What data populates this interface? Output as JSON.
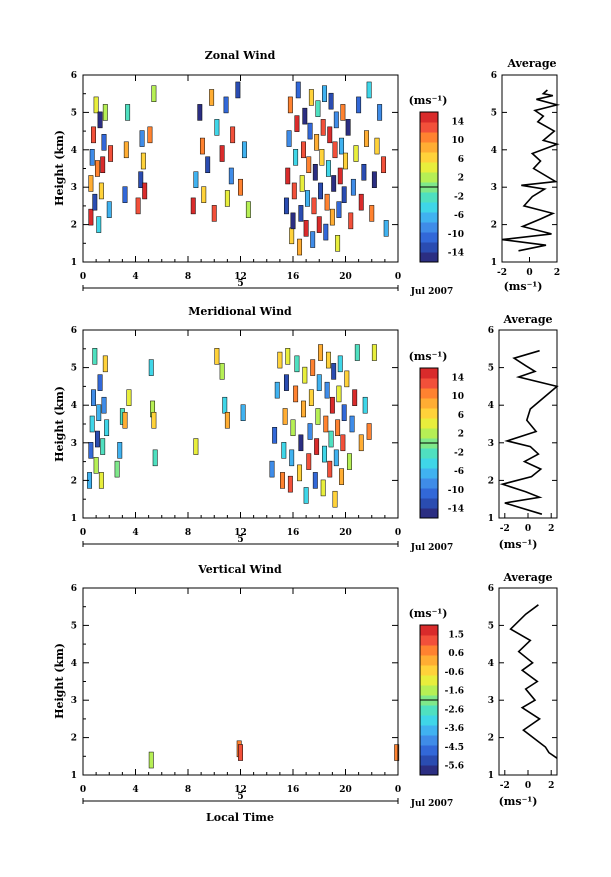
{
  "figure": {
    "shared_x_label": "Local Time",
    "date_label": "Jul 2007",
    "date_marker": "5",
    "x_ticks": [
      "0",
      "4",
      "8",
      "12",
      "16",
      "20",
      "0"
    ],
    "colormap": [
      "#2b2e82",
      "#2a4cb1",
      "#3268d8",
      "#3f8ce8",
      "#40b2f0",
      "#3fd6e8",
      "#4fe0c0",
      "#7fe88a",
      "#b6ef55",
      "#e8ee3c",
      "#ffd23a",
      "#ffad33",
      "#ff8230",
      "#f2503a",
      "#d92b2b"
    ]
  },
  "panels": [
    {
      "title": "Zonal Wind",
      "ylabel": "Height (km)",
      "y_ticks": [
        "1",
        "2",
        "3",
        "4",
        "5",
        "6"
      ],
      "colorbar_unit": "(ms⁻¹)",
      "colorbar_labels": [
        "14",
        "10",
        "6",
        "2",
        "-2",
        "-6",
        "-10",
        "-14"
      ],
      "avg_title": "Average",
      "avg_x_ticks": [
        "-2",
        "0",
        "2"
      ],
      "avg_xlabel": "(ms⁻¹)"
    },
    {
      "title": "Meridional Wind",
      "ylabel": "Height (km)",
      "y_ticks": [
        "1",
        "2",
        "3",
        "4",
        "5",
        "6"
      ],
      "colorbar_unit": "(ms⁻¹)",
      "colorbar_labels": [
        "14",
        "10",
        "6",
        "2",
        "-2",
        "-6",
        "-10",
        "-14"
      ],
      "avg_title": "Average",
      "avg_x_ticks": [
        "-2",
        "0",
        "2"
      ],
      "avg_xlabel": "(ms⁻¹)"
    },
    {
      "title": "Vertical Wind",
      "ylabel": "Height (km)",
      "y_ticks": [
        "1",
        "2",
        "3",
        "4",
        "5",
        "6"
      ],
      "colorbar_unit": "(ms⁻¹)",
      "colorbar_labels": [
        "1.5",
        "0.6",
        "-0.6",
        "-1.6",
        "-2.6",
        "-3.6",
        "-4.5",
        "-5.6"
      ],
      "avg_title": "Average",
      "avg_x_ticks": [
        "-2",
        "0",
        "2"
      ],
      "avg_xlabel": "(ms⁻¹)"
    }
  ],
  "chart_data": [
    {
      "type": "heatmap",
      "title": "Zonal Wind",
      "xlabel": "Local Time",
      "ylabel": "Height (km)",
      "xlim": [
        0,
        24
      ],
      "ylim": [
        1,
        6
      ],
      "colorbar_range": [
        -16,
        16
      ],
      "cells": [
        [
          0.6,
          2.2,
          14
        ],
        [
          0.6,
          3.1,
          8
        ],
        [
          0.7,
          3.8,
          -8
        ],
        [
          0.8,
          4.4,
          12
        ],
        [
          0.9,
          2.6,
          -12
        ],
        [
          1.0,
          5.2,
          4
        ],
        [
          1.1,
          3.5,
          10
        ],
        [
          1.2,
          2.0,
          -4
        ],
        [
          1.3,
          4.8,
          -14
        ],
        [
          1.4,
          2.9,
          6
        ],
        [
          1.5,
          3.6,
          14
        ],
        [
          1.6,
          4.2,
          -10
        ],
        [
          1.7,
          5.0,
          2
        ],
        [
          2.0,
          2.4,
          -6
        ],
        [
          2.1,
          3.9,
          12
        ],
        [
          3.2,
          2.8,
          -10
        ],
        [
          3.3,
          4.0,
          8
        ],
        [
          3.4,
          5.0,
          -2
        ],
        [
          4.2,
          2.5,
          12
        ],
        [
          4.4,
          3.2,
          -12
        ],
        [
          4.5,
          4.3,
          -8
        ],
        [
          4.6,
          3.7,
          6
        ],
        [
          4.7,
          2.9,
          14
        ],
        [
          5.1,
          4.4,
          10
        ],
        [
          5.4,
          5.5,
          2
        ],
        [
          8.4,
          2.5,
          14
        ],
        [
          8.6,
          3.2,
          -6
        ],
        [
          8.9,
          5.0,
          -14
        ],
        [
          9.1,
          4.1,
          10
        ],
        [
          9.2,
          2.8,
          6
        ],
        [
          9.5,
          3.6,
          -12
        ],
        [
          9.8,
          5.4,
          8
        ],
        [
          10.0,
          2.3,
          12
        ],
        [
          10.2,
          4.6,
          -4
        ],
        [
          10.6,
          3.9,
          14
        ],
        [
          10.9,
          5.2,
          -10
        ],
        [
          11.0,
          2.7,
          4
        ],
        [
          11.3,
          3.3,
          -8
        ],
        [
          11.4,
          4.4,
          12
        ],
        [
          11.8,
          5.6,
          -12
        ],
        [
          12.0,
          3.0,
          10
        ],
        [
          12.3,
          4.0,
          -6
        ],
        [
          12.6,
          2.4,
          2
        ],
        [
          15.5,
          2.5,
          -12
        ],
        [
          15.6,
          3.3,
          14
        ],
        [
          15.7,
          4.3,
          -8
        ],
        [
          15.8,
          5.2,
          10
        ],
        [
          15.9,
          1.7,
          6
        ],
        [
          16.0,
          2.1,
          -14
        ],
        [
          16.1,
          2.9,
          12
        ],
        [
          16.2,
          3.8,
          -4
        ],
        [
          16.3,
          4.7,
          14
        ],
        [
          16.4,
          5.6,
          -10
        ],
        [
          16.5,
          1.4,
          8
        ],
        [
          16.6,
          2.3,
          -12
        ],
        [
          16.7,
          3.1,
          4
        ],
        [
          16.8,
          4.0,
          12
        ],
        [
          16.9,
          4.9,
          -14
        ],
        [
          17.0,
          1.9,
          14
        ],
        [
          17.1,
          2.7,
          -6
        ],
        [
          17.2,
          3.6,
          10
        ],
        [
          17.3,
          4.5,
          -10
        ],
        [
          17.4,
          5.4,
          6
        ],
        [
          17.5,
          1.6,
          -8
        ],
        [
          17.6,
          2.5,
          12
        ],
        [
          17.7,
          3.4,
          -14
        ],
        [
          17.8,
          4.2,
          8
        ],
        [
          17.9,
          5.1,
          -2
        ],
        [
          18.0,
          2.0,
          14
        ],
        [
          18.1,
          2.9,
          -12
        ],
        [
          18.2,
          3.8,
          6
        ],
        [
          18.3,
          4.6,
          12
        ],
        [
          18.4,
          5.5,
          -6
        ],
        [
          18.5,
          1.8,
          -10
        ],
        [
          18.6,
          2.6,
          10
        ],
        [
          18.7,
          3.5,
          -4
        ],
        [
          18.8,
          4.4,
          14
        ],
        [
          18.9,
          5.3,
          -12
        ],
        [
          19.0,
          2.2,
          8
        ],
        [
          19.1,
          3.1,
          -14
        ],
        [
          19.2,
          4.0,
          12
        ],
        [
          19.3,
          4.8,
          -8
        ],
        [
          19.4,
          1.5,
          4
        ],
        [
          19.5,
          2.4,
          -10
        ],
        [
          19.6,
          3.3,
          14
        ],
        [
          19.7,
          4.1,
          -6
        ],
        [
          19.8,
          5.0,
          10
        ],
        [
          19.9,
          2.8,
          -12
        ],
        [
          20.0,
          3.7,
          6
        ],
        [
          20.2,
          4.6,
          -14
        ],
        [
          20.4,
          2.1,
          12
        ],
        [
          20.6,
          3.0,
          -8
        ],
        [
          20.8,
          3.9,
          4
        ],
        [
          21.0,
          5.2,
          -10
        ],
        [
          21.2,
          2.6,
          14
        ],
        [
          21.4,
          3.4,
          -12
        ],
        [
          21.6,
          4.3,
          8
        ],
        [
          21.8,
          5.6,
          -4
        ],
        [
          22.0,
          2.3,
          10
        ],
        [
          22.2,
          3.2,
          -14
        ],
        [
          22.4,
          4.1,
          6
        ],
        [
          22.6,
          5.0,
          -8
        ],
        [
          22.9,
          3.6,
          12
        ],
        [
          23.1,
          1.9,
          -6
        ]
      ],
      "average_profile": {
        "xlim": [
          -2,
          2
        ],
        "x": [
          -0.8,
          1.2,
          -2.0,
          1.6,
          -0.5,
          0.8,
          1.7,
          -0.4,
          0.2,
          1.1,
          -0.6,
          1.9,
          0.3,
          0.8,
          0.2,
          2.0,
          1.0,
          1.8,
          0.6,
          1.0,
          0.4,
          2.0,
          0.5,
          1.7,
          1.0,
          1.3
        ],
        "y": [
          1.3,
          1.45,
          1.6,
          1.75,
          1.95,
          2.15,
          2.3,
          2.5,
          2.75,
          2.95,
          3.05,
          3.15,
          3.5,
          3.7,
          3.9,
          4.15,
          4.25,
          4.5,
          4.75,
          4.9,
          5.05,
          5.2,
          5.35,
          5.45,
          5.5,
          5.6
        ]
      }
    },
    {
      "type": "heatmap",
      "title": "Meridional Wind",
      "xlabel": "Local Time",
      "ylabel": "Height (km)",
      "xlim": [
        0,
        24
      ],
      "ylim": [
        1,
        6
      ],
      "colorbar_range": [
        -16,
        16
      ],
      "cells": [
        [
          0.5,
          2.0,
          -6
        ],
        [
          0.6,
          2.8,
          -10
        ],
        [
          0.7,
          3.5,
          -4
        ],
        [
          0.8,
          4.2,
          -8
        ],
        [
          0.9,
          5.3,
          -2
        ],
        [
          1.0,
          2.4,
          2
        ],
        [
          1.1,
          3.1,
          -12
        ],
        [
          1.2,
          3.8,
          -6
        ],
        [
          1.3,
          4.6,
          -10
        ],
        [
          1.4,
          2.0,
          4
        ],
        [
          1.5,
          2.9,
          -2
        ],
        [
          1.6,
          4.0,
          -8
        ],
        [
          1.7,
          5.1,
          6
        ],
        [
          1.8,
          3.4,
          -4
        ],
        [
          2.6,
          2.3,
          0
        ],
        [
          2.8,
          2.8,
          -6
        ],
        [
          3.0,
          3.7,
          -2
        ],
        [
          3.2,
          3.6,
          8
        ],
        [
          3.5,
          4.2,
          4
        ],
        [
          5.2,
          5.0,
          -4
        ],
        [
          5.3,
          3.9,
          2
        ],
        [
          5.4,
          3.6,
          6
        ],
        [
          5.5,
          2.6,
          -2
        ],
        [
          8.6,
          2.9,
          4
        ],
        [
          10.2,
          5.3,
          6
        ],
        [
          10.6,
          4.9,
          2
        ],
        [
          10.8,
          4.0,
          -4
        ],
        [
          11.0,
          3.6,
          8
        ],
        [
          12.2,
          3.8,
          -6
        ],
        [
          14.4,
          2.3,
          -8
        ],
        [
          14.6,
          3.2,
          -10
        ],
        [
          14.8,
          4.4,
          -6
        ],
        [
          15.0,
          5.2,
          6
        ],
        [
          15.2,
          2.0,
          10
        ],
        [
          15.3,
          2.8,
          -4
        ],
        [
          15.4,
          3.7,
          8
        ],
        [
          15.5,
          4.6,
          -12
        ],
        [
          15.6,
          5.3,
          4
        ],
        [
          15.8,
          1.9,
          12
        ],
        [
          15.9,
          2.6,
          -6
        ],
        [
          16.0,
          3.4,
          2
        ],
        [
          16.2,
          4.3,
          10
        ],
        [
          16.3,
          5.1,
          -2
        ],
        [
          16.5,
          2.2,
          6
        ],
        [
          16.6,
          3.0,
          -14
        ],
        [
          16.8,
          3.9,
          8
        ],
        [
          16.9,
          4.8,
          4
        ],
        [
          17.0,
          1.6,
          -4
        ],
        [
          17.2,
          2.5,
          12
        ],
        [
          17.3,
          3.3,
          -8
        ],
        [
          17.4,
          4.2,
          6
        ],
        [
          17.5,
          5.0,
          10
        ],
        [
          17.7,
          2.0,
          -10
        ],
        [
          17.8,
          2.9,
          14
        ],
        [
          17.9,
          3.7,
          2
        ],
        [
          18.0,
          4.6,
          -6
        ],
        [
          18.1,
          5.4,
          8
        ],
        [
          18.3,
          1.8,
          4
        ],
        [
          18.4,
          2.7,
          -4
        ],
        [
          18.5,
          3.5,
          10
        ],
        [
          18.6,
          4.4,
          -8
        ],
        [
          18.7,
          5.2,
          6
        ],
        [
          18.8,
          2.3,
          12
        ],
        [
          18.9,
          3.1,
          -2
        ],
        [
          19.0,
          4.0,
          14
        ],
        [
          19.1,
          4.9,
          -12
        ],
        [
          19.2,
          1.5,
          6
        ],
        [
          19.3,
          2.6,
          -6
        ],
        [
          19.4,
          3.4,
          10
        ],
        [
          19.5,
          4.3,
          4
        ],
        [
          19.6,
          5.1,
          -4
        ],
        [
          19.7,
          2.1,
          8
        ],
        [
          19.8,
          3.0,
          12
        ],
        [
          19.9,
          3.8,
          -10
        ],
        [
          20.1,
          4.7,
          6
        ],
        [
          20.3,
          2.5,
          2
        ],
        [
          20.5,
          3.5,
          -8
        ],
        [
          20.7,
          4.2,
          14
        ],
        [
          20.9,
          5.4,
          -2
        ],
        [
          21.2,
          3.0,
          8
        ],
        [
          21.5,
          4.0,
          -4
        ],
        [
          21.8,
          3.3,
          10
        ],
        [
          22.2,
          5.4,
          4
        ]
      ],
      "average_profile": {
        "xlim": [
          -2.5,
          2.5
        ],
        "x": [
          1.2,
          -2.0,
          1.0,
          -0.2,
          -2.2,
          0.3,
          1.1,
          -0.3,
          0.9,
          0.2,
          -1.8,
          0.7,
          -0.1,
          0.2,
          2.5,
          -0.8,
          0.6,
          -0.2,
          -1.2,
          1.0
        ],
        "y": [
          1.1,
          1.4,
          1.55,
          1.7,
          1.9,
          2.1,
          2.3,
          2.5,
          2.7,
          2.9,
          3.05,
          3.3,
          3.6,
          3.9,
          4.5,
          4.75,
          4.9,
          5.05,
          5.25,
          5.45
        ]
      }
    },
    {
      "type": "heatmap",
      "title": "Vertical Wind",
      "xlabel": "Local Time",
      "ylabel": "Height (km)",
      "xlim": [
        0,
        24
      ],
      "ylim": [
        1,
        6
      ],
      "colorbar_range": [
        -6,
        2
      ],
      "cells": [
        [
          5.2,
          1.4,
          -1.6
        ],
        [
          11.9,
          1.7,
          0.8
        ],
        [
          12.0,
          1.6,
          1.2
        ],
        [
          23.9,
          1.6,
          0.4
        ]
      ],
      "average_profile": {
        "xlim": [
          -2.5,
          2.5
        ],
        "x": [
          2.5,
          1.8,
          1.5,
          -0.4,
          1.0,
          -0.5,
          0.6,
          -0.2,
          0.8,
          -0.5,
          0.4,
          -0.8,
          0.2,
          -1.5,
          -0.2,
          0.9
        ],
        "y": [
          1.45,
          1.6,
          1.75,
          2.2,
          2.5,
          2.8,
          3.0,
          3.3,
          3.5,
          3.8,
          4.0,
          4.3,
          4.6,
          4.9,
          5.3,
          5.55
        ]
      }
    }
  ]
}
